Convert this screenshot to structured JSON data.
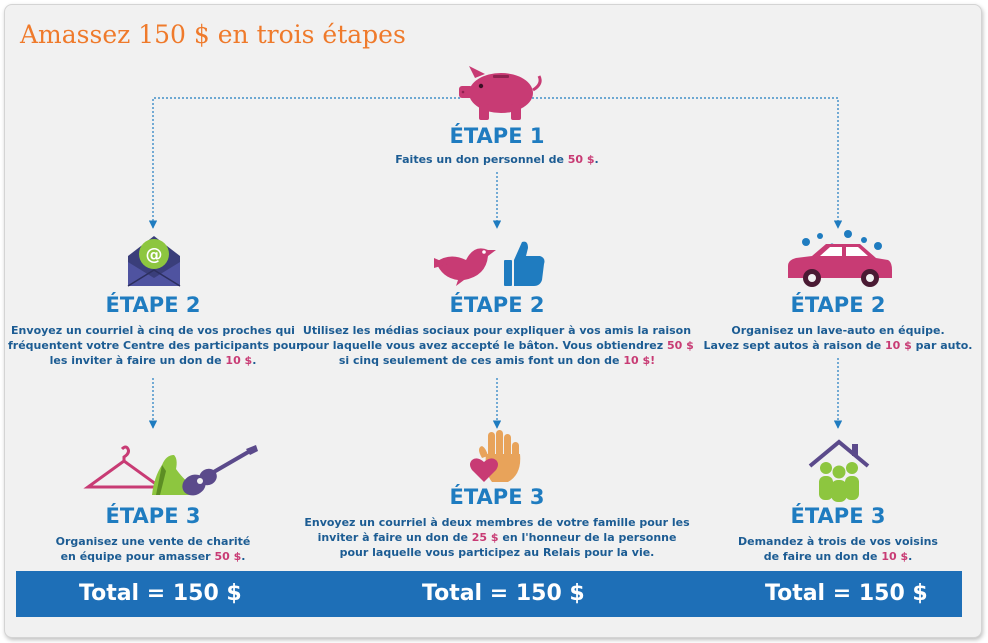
{
  "title": "Amassez 150 $ en trois étapes",
  "colors": {
    "title": "#ef7a2b",
    "heading": "#1f7cc0",
    "text": "#1c5c93",
    "amount": "#c83b74",
    "bar": "#1e6fb7",
    "icon_pink": "#c83b74",
    "icon_green": "#8dc63f",
    "icon_purple": "#5b4a8b",
    "icon_navy": "#3a3e7a"
  },
  "step1": {
    "icon": "piggy-bank",
    "heading": "ÉTAPE 1",
    "text_before": "Faites un don personnel de ",
    "amount": "50 $",
    "text_after": "."
  },
  "col_left": {
    "step2": {
      "icon": "envelope-at",
      "heading": "ÉTAPE 2",
      "line1": "Envoyez un courriel à cinq de vos proches qui",
      "line2": "fréquentent votre Centre des participants pour",
      "line3_before": "les inviter à faire un don de ",
      "line3_amount": "10 $",
      "line3_after": "."
    },
    "step3": {
      "icon": "hanger-shoe-guitar",
      "heading": "ÉTAPE 3",
      "line1": "Organisez une vente de charité",
      "line2_before": "en équipe pour amasser ",
      "line2_amount": "50 $",
      "line2_after": "."
    },
    "total": "Total = 150 $"
  },
  "col_mid": {
    "step2": {
      "icon": "bird-thumbs-up",
      "heading": "ÉTAPE 2",
      "line1": "Utilisez les médias sociaux pour expliquer à vos amis la raison",
      "line2_before": "pour laquelle vous avez accepté le bâton. Vous obtiendrez ",
      "line2_amount": "50 $",
      "line3_before": "si cinq seulement de ces amis font un don de ",
      "line3_amount": "10 $",
      "line3_after": "!"
    },
    "step3": {
      "icon": "hand-heart",
      "heading": "ÉTAPE 3",
      "line1": "Envoyez un courriel à deux membres de votre famille pour les",
      "line2_before": "inviter à faire un don de ",
      "line2_amount": "25 $",
      "line2_after": " en l'honneur de la personne",
      "line3": "pour laquelle vous participez au Relais pour la vie."
    },
    "total": "Total = 150 $"
  },
  "col_right": {
    "step2": {
      "icon": "car-wash",
      "heading": "ÉTAPE 2",
      "line1": "Organisez un lave-auto en équipe.",
      "line2_before": "Lavez sept autos à raison de ",
      "line2_amount": "10 $",
      "line2_after": " par auto."
    },
    "step3": {
      "icon": "house-people",
      "heading": "ÉTAPE 3",
      "line1": "Demandez à trois de vos voisins",
      "line2_before": "de faire un don de ",
      "line2_amount": "10 $",
      "line2_after": "."
    },
    "total": "Total = 150 $"
  }
}
